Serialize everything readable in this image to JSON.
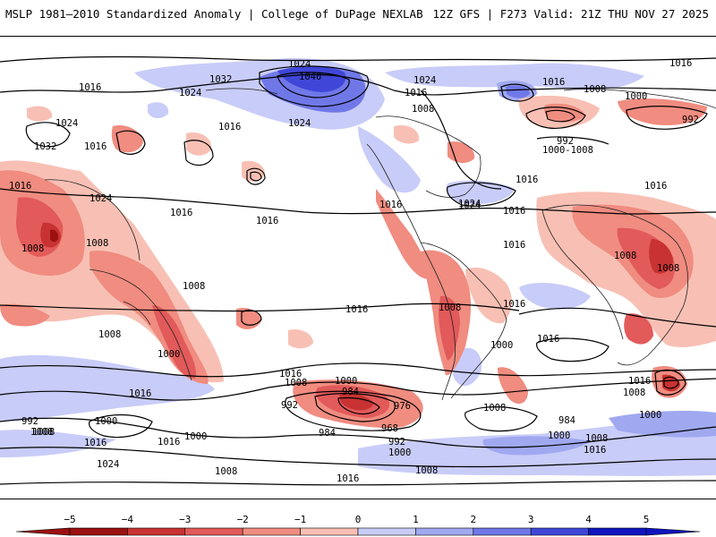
{
  "header": {
    "left_title": "MSLP 1981–2010 Standardized Anomaly | College of DuPage NEXLAB",
    "right_title": "12Z GFS | F273 Valid: 21Z THU NOV 27 2025"
  },
  "map": {
    "projection": "global-cylindrical",
    "isobar_labels": [
      "1024",
      "1016",
      "1032",
      "1040",
      "1024",
      "1016",
      "1024",
      "1016",
      "1008",
      "1000",
      "992",
      "1016",
      "1024",
      "1016",
      "1032",
      "1016",
      "1024",
      "1016",
      "1024",
      "1016",
      "1016",
      "1016",
      "1024",
      "1016",
      "1008",
      "992",
      "1000-1008",
      "1016",
      "1008",
      "1008",
      "1008",
      "1016",
      "1024",
      "1016",
      "1008",
      "1008",
      "1008",
      "1000",
      "1016",
      "1008",
      "1016",
      "1016",
      "1000",
      "1000",
      "1016",
      "1008",
      "1016",
      "992",
      "1000",
      "984",
      "976",
      "968",
      "984",
      "992",
      "1000",
      "1008",
      "1016",
      "1008",
      "1016",
      "1008",
      "992",
      "1000",
      "1008",
      "1016",
      "1024",
      "1000",
      "984",
      "1000",
      "1008",
      "1016",
      "1008",
      "1008",
      "1016"
    ]
  },
  "colorbar": {
    "ticks": [
      "−5",
      "−4",
      "−3",
      "−2",
      "−1",
      "0",
      "1",
      "2",
      "3",
      "4",
      "5"
    ],
    "colors": [
      "#9b1010",
      "#c83232",
      "#e25a5a",
      "#f08c80",
      "#f8c0b4",
      "#ffffff",
      "#c8ccf8",
      "#a0a8f0",
      "#7078e8",
      "#4046d8",
      "#1014c0"
    ]
  }
}
